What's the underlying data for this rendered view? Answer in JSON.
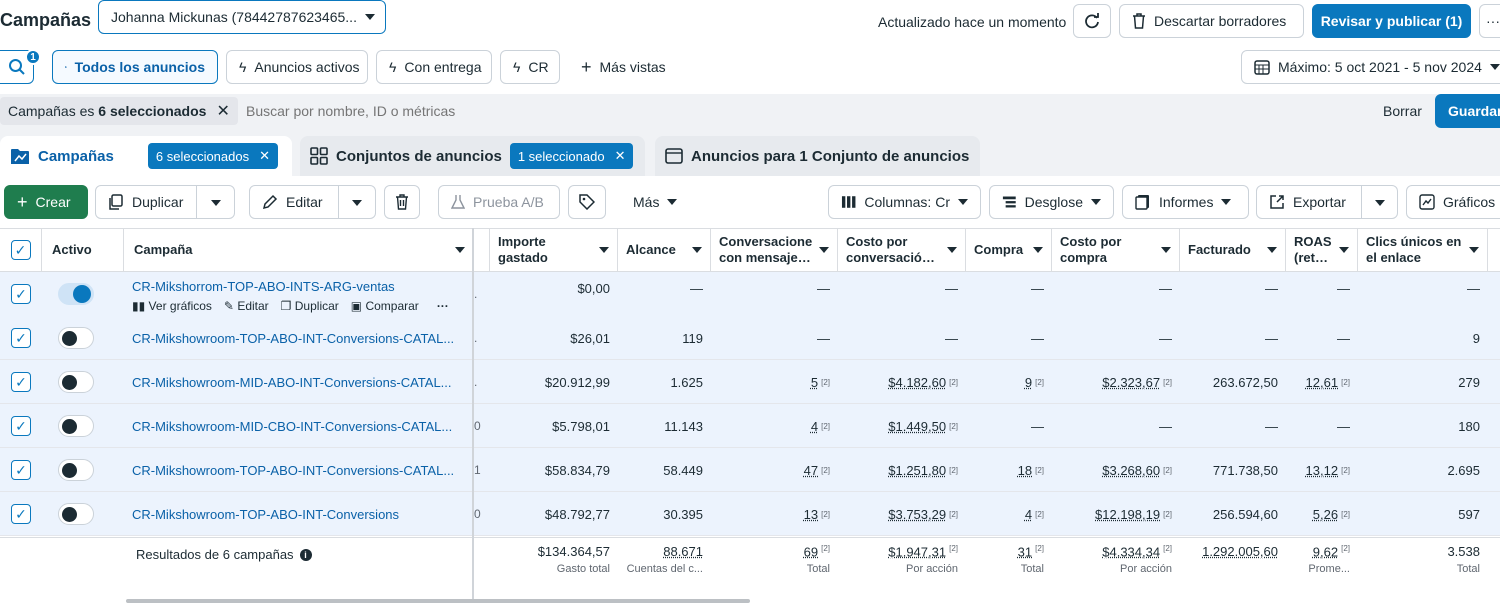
{
  "header": {
    "title": "Campañas",
    "account": "Johanna Mickunas (78442787623465...",
    "status": "Actualizado hace un momento",
    "discard": "Descartar borradores",
    "publish": "Revisar y publicar (1)",
    "more": "···"
  },
  "views": {
    "search_badge": "1",
    "all_ads": "Todos los anuncios",
    "active_ads": "Anuncios activos",
    "delivery": "Con entrega",
    "cr": "CR",
    "more_views": "Más vistas",
    "date_range": "Máximo: 5 oct 2021 - 5 nov 2024"
  },
  "filter": {
    "chip_prefix": "Campañas es",
    "chip_value": "6 seleccionados",
    "placeholder": "Buscar por nombre, ID o métricas",
    "clear": "Borrar",
    "save": "Guardar"
  },
  "tabs": {
    "campaigns": "Campañas",
    "campaigns_sel": "6 seleccionados",
    "adsets": "Conjuntos de anuncios",
    "adsets_sel": "1 seleccionado",
    "ads": "Anuncios para 1 Conjunto de anuncios"
  },
  "toolbar": {
    "create": "Crear",
    "duplicate": "Duplicar",
    "edit": "Editar",
    "ab_test": "Prueba A/B",
    "more": "Más",
    "columns": "Columnas: Cr",
    "breakdown": "Desglose",
    "reports": "Informes",
    "export": "Exportar",
    "charts": "Gráficos"
  },
  "columns": {
    "active": "Activo",
    "campaign": "Campaña",
    "spend": "Importe gastado",
    "reach": "Alcance",
    "conversations": "Conversacione con mensaje…",
    "cost_conv": "Costo por conversació…",
    "purchase": "Compra",
    "cost_purchase": "Costo por compra",
    "revenue": "Facturado",
    "roas": "ROAS (ret…",
    "clicks": "Clics únicos en el enlace"
  },
  "hover_actions": {
    "charts": "Ver gráficos",
    "edit": "Editar",
    "duplicate": "Duplicar",
    "compare": "Comparar"
  },
  "rows": [
    {
      "name": "CR-Mikshorrom-TOP-ABO-INTS-ARG-ventas",
      "on": true,
      "frag": ".",
      "spend": "$0,00",
      "reach": "—",
      "conv": "—",
      "cost_conv": "—",
      "purchase": "—",
      "cost_purchase": "—",
      "revenue": "—",
      "roas": "—",
      "clicks": "—"
    },
    {
      "name": "CR-Mikshowroom-TOP-ABO-INT-Conversions-CATAL...",
      "on": false,
      "frag": ".",
      "spend": "$26,01",
      "reach": "119",
      "conv": "—",
      "cost_conv": "—",
      "purchase": "—",
      "cost_purchase": "—",
      "revenue": "—",
      "roas": "—",
      "clicks": "9"
    },
    {
      "name": "CR-Mikshowroom-MID-ABO-INT-Conversions-CATAL...",
      "on": false,
      "frag": ".",
      "spend": "$20.912,99",
      "reach": "1.625",
      "conv": "5",
      "cost_conv": "$4.182,60",
      "purchase": "9",
      "cost_purchase": "$2.323,67",
      "revenue": "263.672,50",
      "roas": "12,61",
      "clicks": "279"
    },
    {
      "name": "CR-Mikshowroom-MID-CBO-INT-Conversions-CATAL...",
      "on": false,
      "frag": "0",
      "spend": "$5.798,01",
      "reach": "11.143",
      "conv": "4",
      "cost_conv": "$1.449,50",
      "purchase": "—",
      "cost_purchase": "—",
      "revenue": "—",
      "roas": "—",
      "clicks": "180"
    },
    {
      "name": "CR-Mikshowroom-TOP-ABO-INT-Conversions-CATAL...",
      "on": false,
      "frag": "1",
      "spend": "$58.834,79",
      "reach": "58.449",
      "conv": "47",
      "cost_conv": "$1.251,80",
      "purchase": "18",
      "cost_purchase": "$3.268,60",
      "revenue": "771.738,50",
      "roas": "13,12",
      "clicks": "2.695"
    },
    {
      "name": "CR-Mikshowroom-TOP-ABO-INT-Conversions",
      "on": false,
      "frag": "0",
      "spend": "$48.792,77",
      "reach": "30.395",
      "conv": "13",
      "cost_conv": "$3.753,29",
      "purchase": "4",
      "cost_purchase": "$12.198,19",
      "revenue": "256.594,60",
      "roas": "5,26",
      "clicks": "597"
    }
  ],
  "totals": {
    "label": "Resultados de 6 campañas",
    "spend": "$134.364,57",
    "spend_sub": "Gasto total",
    "reach": "88.671",
    "reach_sub": "Cuentas del c...",
    "conv": "69",
    "conv_sub": "Total",
    "cost_conv": "$1.947,31",
    "cost_conv_sub": "Por acción",
    "purchase": "31",
    "purchase_sub": "Total",
    "cost_purchase": "$4.334,34",
    "cost_purchase_sub": "Por acción",
    "revenue": "1.292.005,60",
    "roas": "9,62",
    "roas_sub": "Prome...",
    "clicks": "3.538",
    "clicks_sub": "Total"
  },
  "footnote_mark": "[2]",
  "colors": {
    "accent": "#0a78be",
    "create_green": "#1f7d4e",
    "row_selected": "#ecf3fd"
  }
}
